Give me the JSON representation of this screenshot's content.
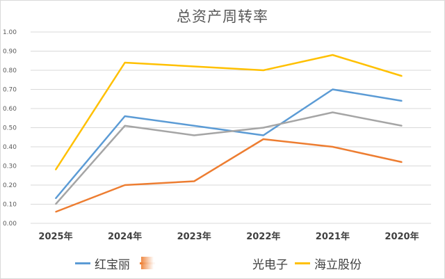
{
  "chart_data": {
    "type": "line",
    "title": "总资产周转率",
    "categories": [
      "2025年",
      "2024年",
      "2023年",
      "2022年",
      "2021年",
      "2020年"
    ],
    "ylim": [
      0,
      1.0
    ],
    "yticks": [
      "0.00",
      "0.10",
      "0.20",
      "0.30",
      "0.40",
      "0.50",
      "0.60",
      "0.70",
      "0.80",
      "0.90",
      "1.00"
    ],
    "grid": true,
    "legend_position": "bottom",
    "series": [
      {
        "name": "红宝丽",
        "color": "#5b9bd5",
        "values": [
          0.13,
          0.56,
          0.51,
          0.46,
          0.7,
          0.64
        ]
      },
      {
        "name": "",
        "color": "#ed7d31",
        "values": [
          0.06,
          0.2,
          0.22,
          0.44,
          0.4,
          0.32
        ]
      },
      {
        "name": "光电子",
        "color": "#a5a5a5",
        "values": [
          0.1,
          0.51,
          0.46,
          0.5,
          0.58,
          0.51
        ]
      },
      {
        "name": "海立股份",
        "color": "#ffc000",
        "values": [
          0.28,
          0.84,
          0.82,
          0.8,
          0.88,
          0.77
        ]
      }
    ]
  }
}
